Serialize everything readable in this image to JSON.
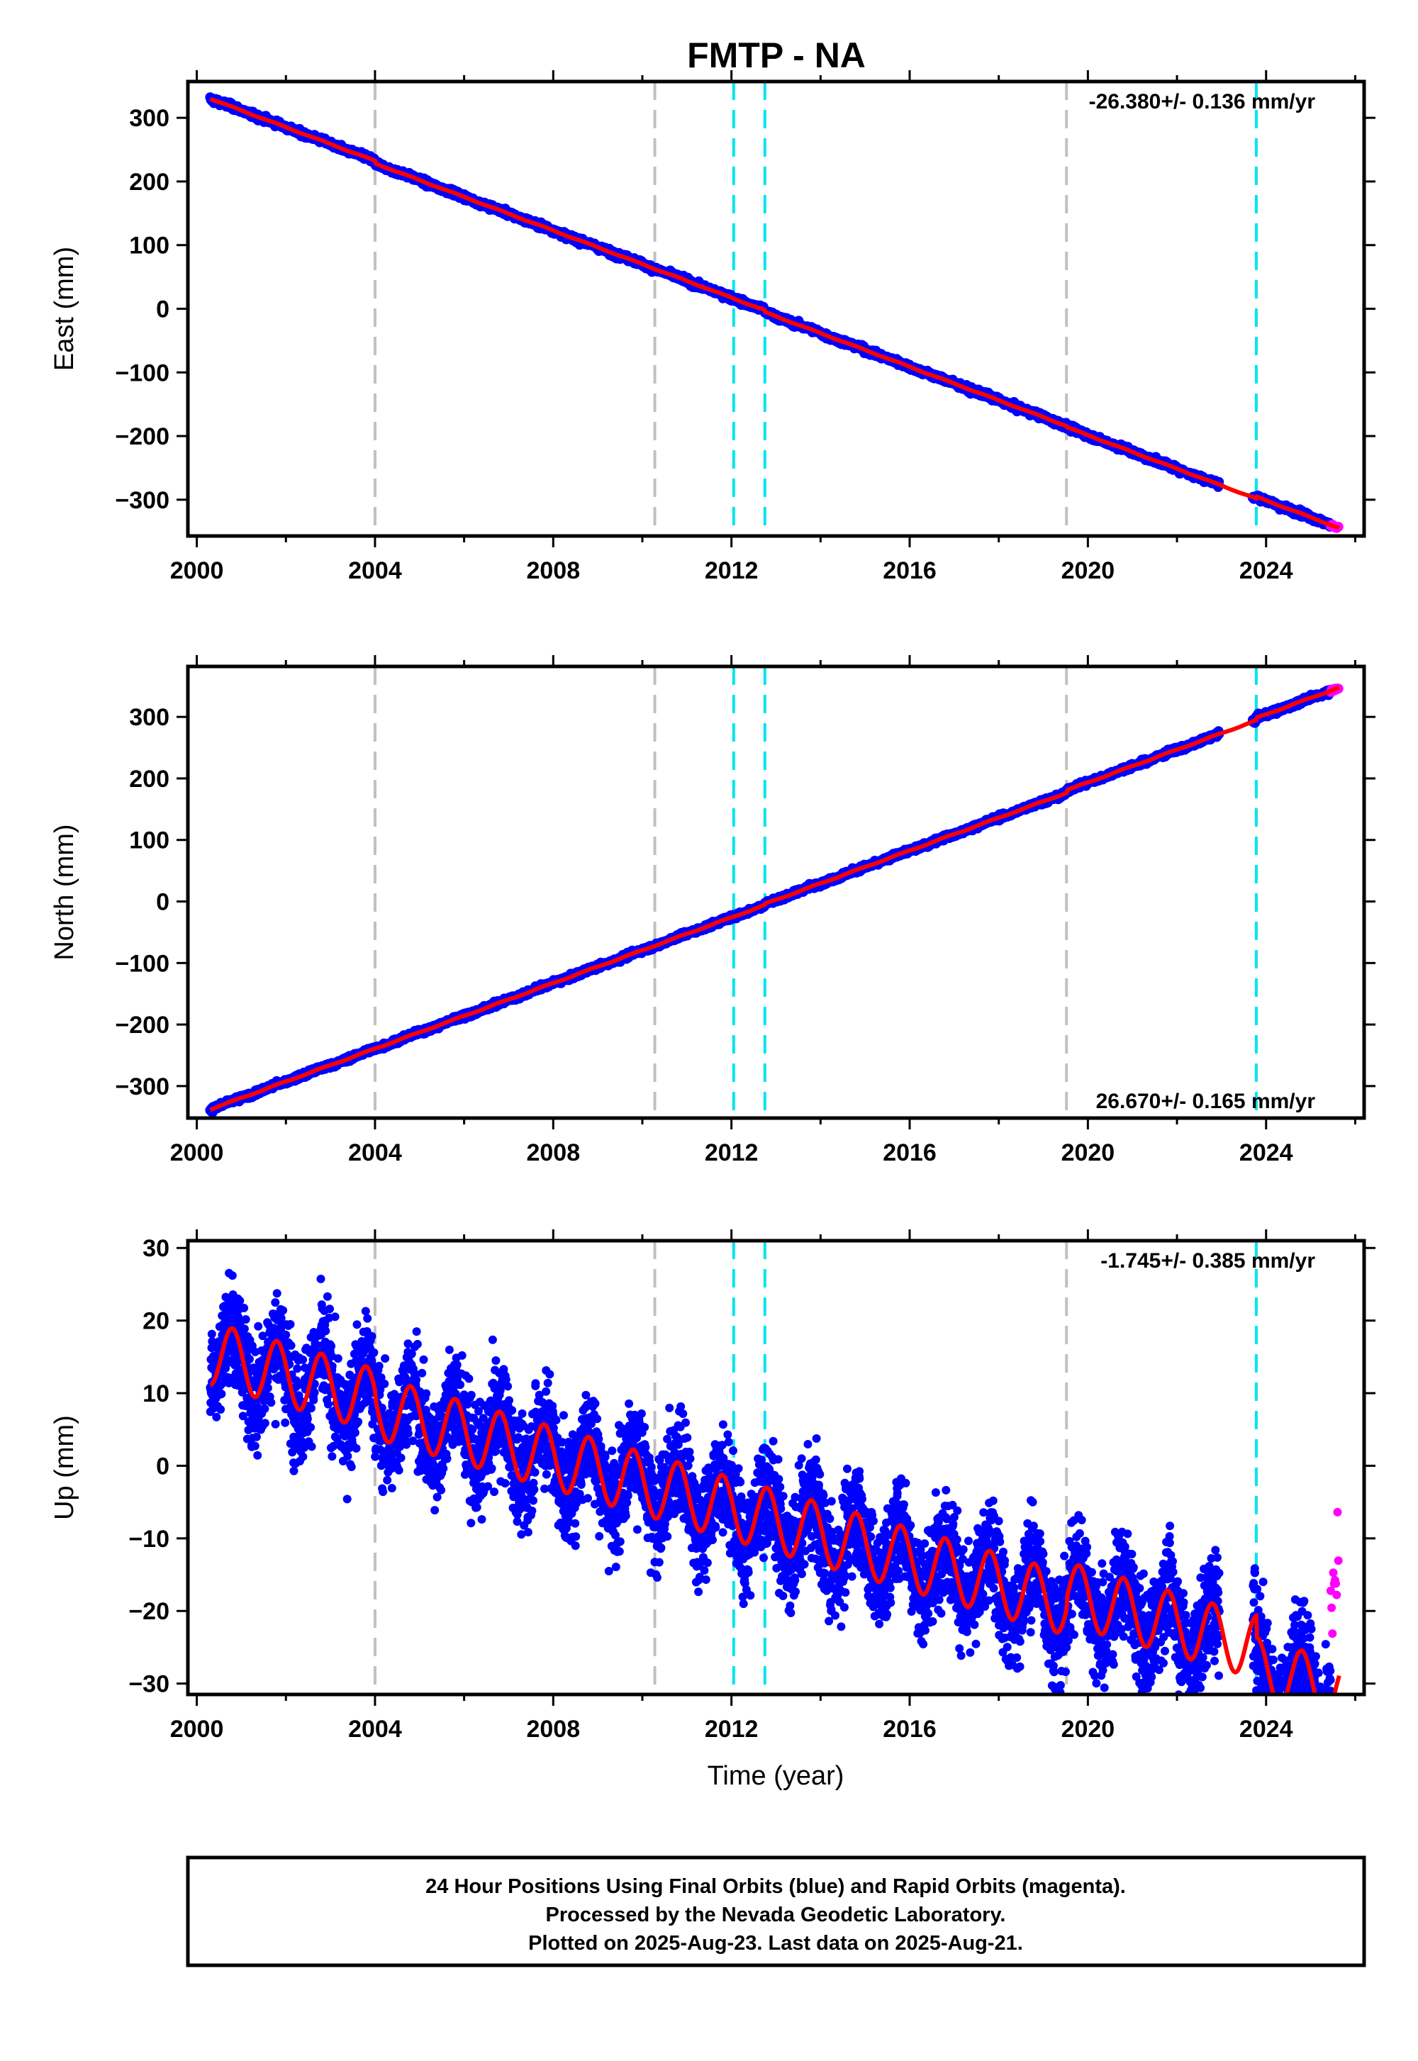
{
  "chart_data": {
    "title": "FMTP - NA",
    "type": "scatter",
    "x_range": [
      1999.8,
      2026.2
    ],
    "x_ticks": [
      2000,
      2004,
      2008,
      2012,
      2016,
      2020,
      2024
    ],
    "xlabel": "Time (year)",
    "data_start": 2000.3,
    "data_end": 2025.64,
    "rapid_start": 2025.45,
    "gaps": [
      [
        2022.95,
        2023.7
      ]
    ],
    "gray_events": [
      2004.0,
      2010.28,
      2019.52
    ],
    "cyan_events": [
      2012.05,
      2012.75,
      2023.78
    ],
    "colors": {
      "final": "#0000ff",
      "rapid": "#ff00ff",
      "model": "#ff0000",
      "gray_event": "#c0c0c0",
      "cyan_event": "#00e5ee"
    },
    "panels": [
      {
        "ylabel": "East (mm)",
        "ylim": [
          -357,
          357
        ],
        "yticks": [
          300,
          200,
          100,
          0,
          -100,
          -200,
          -300
        ],
        "ytick_labels": [
          "300",
          "200",
          "100",
          "0",
          "−100",
          "−200",
          "−300"
        ],
        "rate": "-26.380+/- 0.136 mm/yr",
        "rate_position": "top-right",
        "start_value": 330,
        "slope": -26.38,
        "annual_amp": 0.6,
        "noise": 2.2,
        "steps": [
          [
            2004.0,
            -4
          ],
          [
            2012.75,
            -3
          ],
          [
            2019.52,
            -2
          ],
          [
            2023.78,
            3
          ]
        ]
      },
      {
        "ylabel": "North (mm)",
        "ylim": [
          -352,
          382
        ],
        "yticks": [
          300,
          200,
          100,
          0,
          -100,
          -200,
          -300
        ],
        "ytick_labels": [
          "300",
          "200",
          "100",
          "0",
          "−100",
          "−200",
          "−300"
        ],
        "rate": "26.670+/- 0.165 mm/yr",
        "rate_position": "bottom-right",
        "start_value": -338,
        "slope": 26.67,
        "annual_amp": 0.7,
        "noise": 2.0,
        "steps": [
          [
            2012.75,
            2
          ],
          [
            2019.52,
            4
          ],
          [
            2023.78,
            4
          ]
        ]
      },
      {
        "ylabel": "Up (mm)",
        "ylim": [
          -31.5,
          31
        ],
        "yticks": [
          30,
          20,
          10,
          0,
          -10,
          -20,
          -30
        ],
        "ytick_labels": [
          "30",
          "20",
          "10",
          "0",
          "−10",
          "−20",
          "−30"
        ],
        "rate": "-1.745+/- 0.385 mm/yr",
        "rate_position": "top-right",
        "start_value": 15.5,
        "slope": -1.745,
        "annual_amp": 4.3,
        "noise": 3.6,
        "steps": [
          [
            2004.0,
            -1
          ],
          [
            2019.52,
            1.5
          ],
          [
            2023.78,
            -3
          ]
        ]
      }
    ],
    "footer_lines": [
      "24 Hour Positions Using Final Orbits (blue) and Rapid Orbits (magenta).",
      "Processed by the Nevada Geodetic Laboratory.",
      "Plotted on 2025-Aug-23. Last data on 2025-Aug-21."
    ]
  }
}
